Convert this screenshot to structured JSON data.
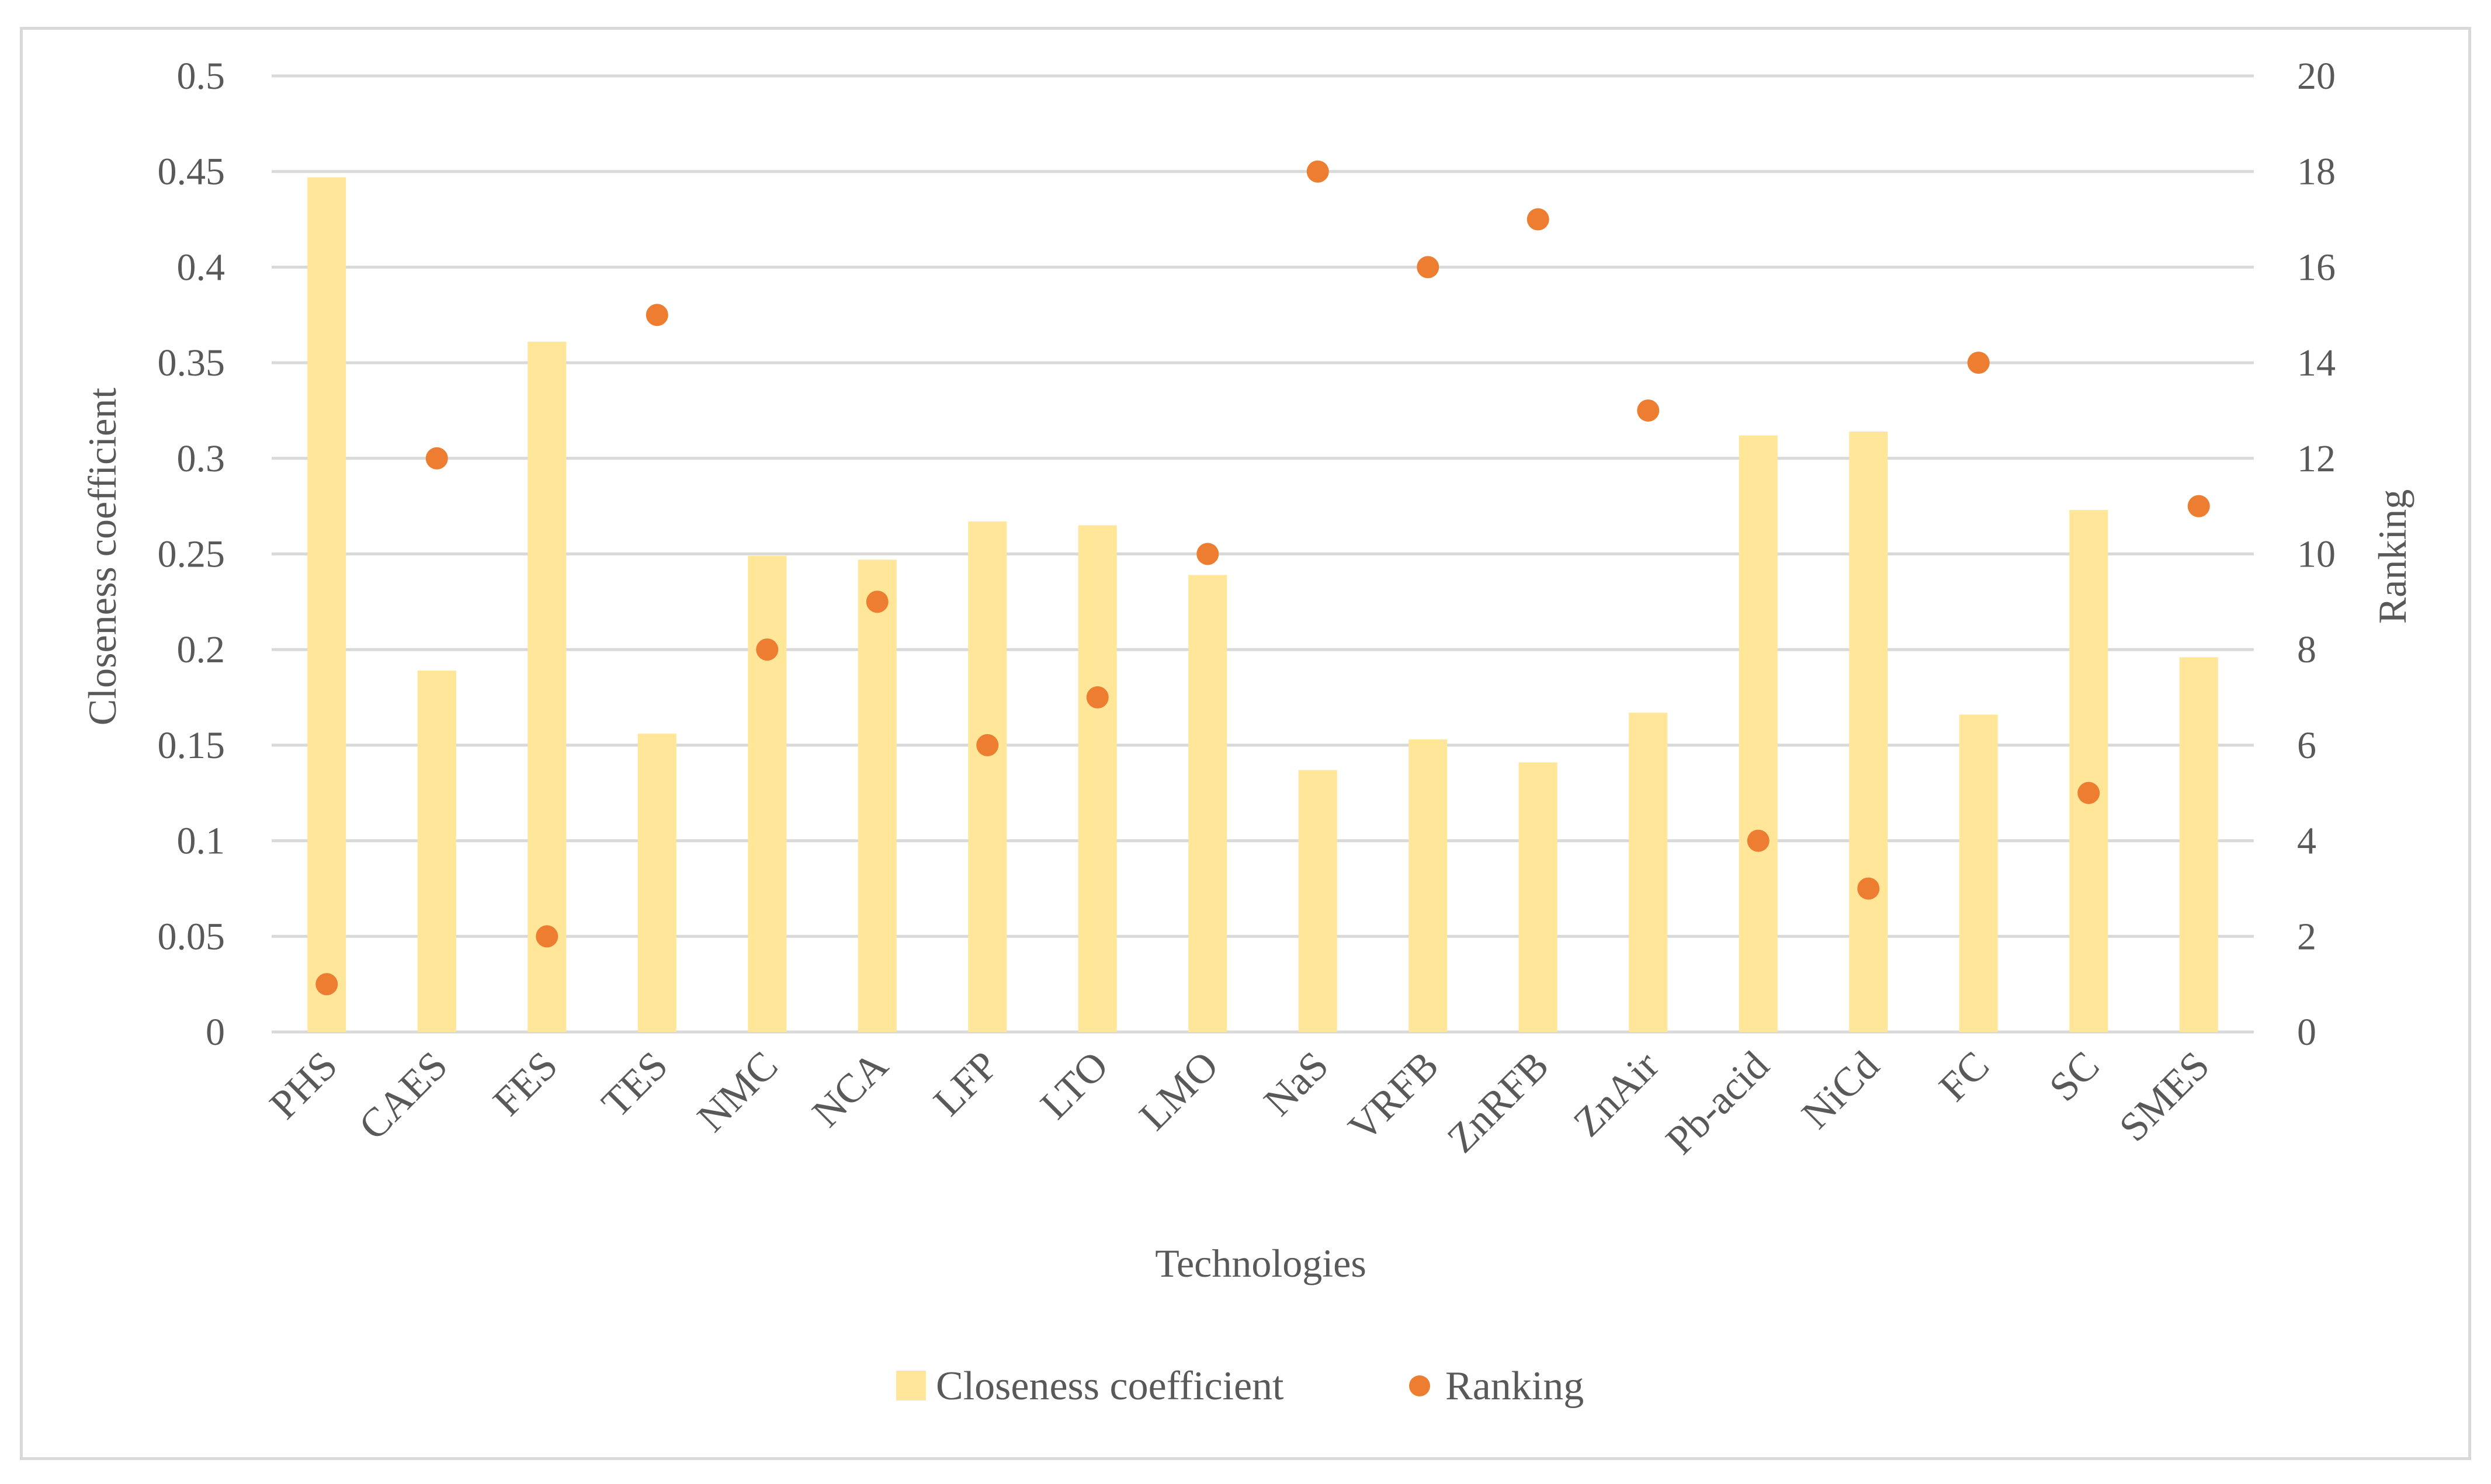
{
  "chart_data": {
    "type": "bar",
    "title": "",
    "xlabel": "Technologies",
    "ylabel": "Closeness coefficient",
    "y2label": "Ranking",
    "ylim": [
      0,
      0.5
    ],
    "y2lim": [
      0,
      20
    ],
    "yticks": [
      "0",
      "0.05",
      "0.1",
      "0.15",
      "0.2",
      "0.25",
      "0.3",
      "0.35",
      "0.4",
      "0.45",
      "0.5"
    ],
    "y2ticks": [
      "0",
      "2",
      "4",
      "6",
      "8",
      "10",
      "12",
      "14",
      "16",
      "18",
      "20"
    ],
    "categories": [
      "PHS",
      "CAES",
      "FES",
      "TES",
      "NMC",
      "NCA",
      "LFP",
      "LTO",
      "LMO",
      "NaS",
      "VRFB",
      "ZnRFB",
      "ZnAir",
      "Pb-acid",
      "NiCd",
      "FC",
      "SC",
      "SMES"
    ],
    "series": [
      {
        "name": "Closeness coefficient",
        "type": "bar",
        "axis": "left",
        "color": "#ffe699",
        "values": [
          0.447,
          0.189,
          0.361,
          0.156,
          0.249,
          0.247,
          0.267,
          0.265,
          0.239,
          0.137,
          0.153,
          0.141,
          0.167,
          0.312,
          0.314,
          0.166,
          0.273,
          0.196
        ]
      },
      {
        "name": "Ranking",
        "type": "scatter",
        "axis": "right",
        "color": "#ed7d31",
        "values": [
          1,
          12,
          2,
          15,
          8,
          9,
          6,
          7,
          10,
          18,
          16,
          17,
          13,
          4,
          3,
          14,
          5,
          11
        ]
      }
    ],
    "grid": true,
    "legend_position": "bottom-center"
  }
}
